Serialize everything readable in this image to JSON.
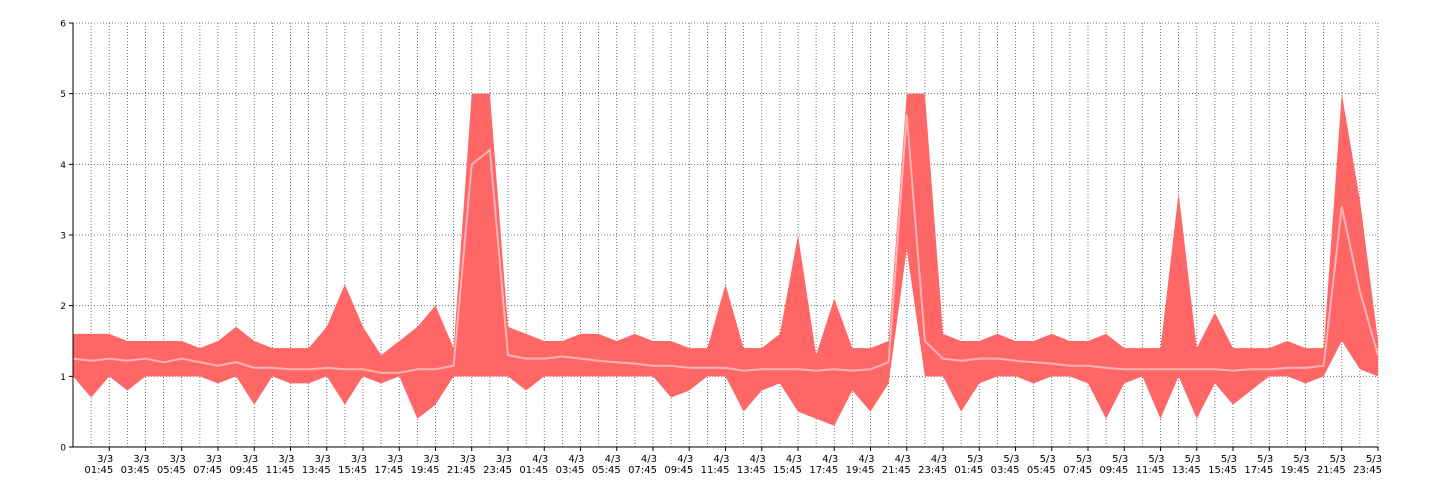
{
  "chart_data": {
    "type": "range",
    "categories": [
      null,
      null,
      "3/3 01:45",
      null,
      "3/3 03:45",
      null,
      "3/3 05:45",
      null,
      "3/3 07:45",
      null,
      "3/3 09:45",
      null,
      "3/3 11:45",
      null,
      "3/3 13:45",
      null,
      "3/3 15:45",
      null,
      "3/3 17:45",
      null,
      "3/3 19:45",
      null,
      "3/3 21:45",
      null,
      "3/3 23:45",
      null,
      "4/3 01:45",
      null,
      "4/3 03:45",
      null,
      "4/3 05:45",
      null,
      "4/3 07:45",
      null,
      "4/3 09:45",
      null,
      "4/3 11:45",
      null,
      "4/3 13:45",
      null,
      "4/3 15:45",
      null,
      "4/3 17:45",
      null,
      "4/3 19:45",
      null,
      "4/3 21:45",
      null,
      "4/3 23:45",
      null,
      "5/3 01:45",
      null,
      "5/3 03:45",
      null,
      "5/3 05:45",
      null,
      "5/3 07:45",
      null,
      "5/3 09:45",
      null,
      "5/3 11:45",
      null,
      "5/3 13:45",
      null,
      "5/3 15:45",
      null,
      "5/3 17:45",
      null,
      "5/3 19:45",
      null,
      "5/3 21:45",
      null,
      "5/3 23:45"
    ],
    "band": {
      "color": "#ff6666",
      "upper": [
        1.6,
        1.6,
        1.6,
        1.5,
        1.5,
        1.5,
        1.5,
        1.4,
        1.5,
        1.7,
        1.5,
        1.4,
        1.4,
        1.4,
        1.7,
        2.3,
        1.7,
        1.3,
        1.5,
        1.7,
        2.0,
        1.4,
        5,
        5,
        1.7,
        1.6,
        1.5,
        1.5,
        1.6,
        1.6,
        1.5,
        1.6,
        1.5,
        1.5,
        1.4,
        1.4,
        2.3,
        1.4,
        1.4,
        1.6,
        3.0,
        1.3,
        2.1,
        1.4,
        1.4,
        1.5,
        5,
        5,
        1.6,
        1.5,
        1.5,
        1.6,
        1.5,
        1.5,
        1.6,
        1.5,
        1.5,
        1.6,
        1.4,
        1.4,
        1.4,
        3.6,
        1.4,
        1.9,
        1.4,
        1.4,
        1.4,
        1.5,
        1.4,
        1.4,
        5,
        3.5,
        1.5
      ],
      "lower": [
        1,
        0.7,
        1,
        0.8,
        1,
        1,
        1,
        1,
        0.9,
        1,
        0.6,
        1,
        0.9,
        0.9,
        1,
        0.6,
        1,
        0.9,
        1,
        0.4,
        0.6,
        1,
        1,
        1,
        1,
        0.8,
        1,
        1,
        1,
        1,
        1,
        1,
        1,
        0.7,
        0.8,
        1,
        1,
        0.5,
        0.8,
        0.9,
        0.5,
        0.4,
        0.3,
        0.8,
        0.5,
        0.9,
        2.8,
        1,
        1,
        0.5,
        0.9,
        1,
        1,
        0.9,
        1,
        1,
        0.9,
        0.4,
        0.9,
        1,
        0.4,
        1,
        0.4,
        0.9,
        0.6,
        0.8,
        1,
        1,
        0.9,
        1,
        1.5,
        1.1,
        1
      ]
    },
    "line": {
      "color": "#ffb3b3",
      "values": [
        1.25,
        1.22,
        1.25,
        1.22,
        1.25,
        1.2,
        1.25,
        1.2,
        1.15,
        1.2,
        1.12,
        1.12,
        1.1,
        1.1,
        1.12,
        1.1,
        1.1,
        1.05,
        1.05,
        1.1,
        1.1,
        1.15,
        4.0,
        4.2,
        1.3,
        1.25,
        1.25,
        1.28,
        1.25,
        1.22,
        1.2,
        1.18,
        1.15,
        1.15,
        1.12,
        1.12,
        1.12,
        1.08,
        1.1,
        1.1,
        1.1,
        1.08,
        1.1,
        1.08,
        1.1,
        1.2,
        4.7,
        1.5,
        1.25,
        1.22,
        1.25,
        1.25,
        1.22,
        1.2,
        1.18,
        1.15,
        1.15,
        1.12,
        1.1,
        1.1,
        1.1,
        1.1,
        1.1,
        1.1,
        1.08,
        1.1,
        1.1,
        1.12,
        1.12,
        1.15,
        3.4,
        2.2,
        1.3
      ]
    },
    "ylim": [
      0,
      6
    ],
    "yticks": [
      0,
      1,
      2,
      3,
      4,
      5,
      6
    ],
    "grid": true
  }
}
